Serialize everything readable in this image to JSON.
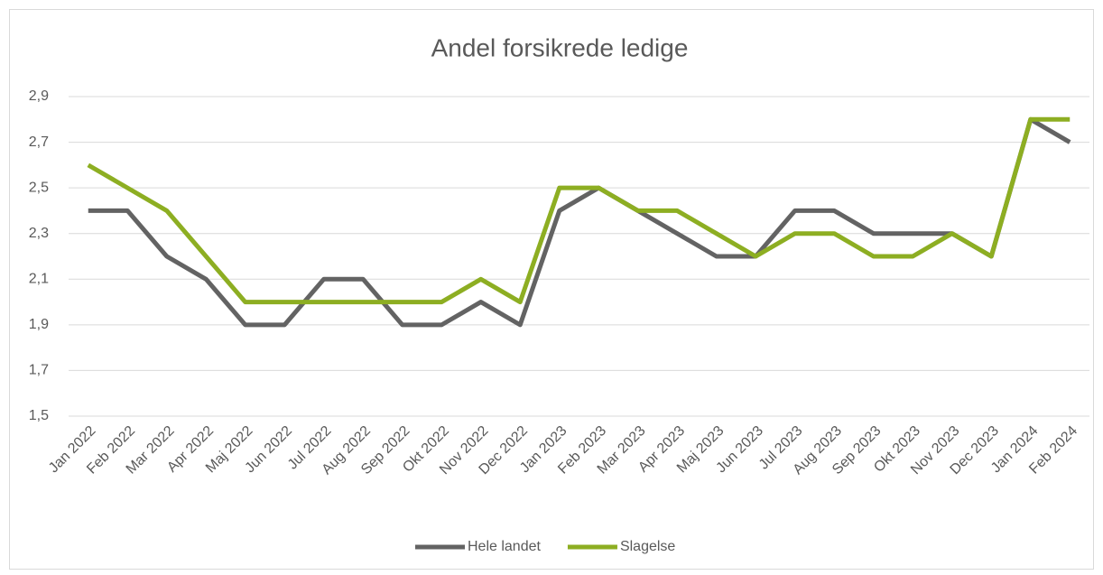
{
  "chart_data": {
    "type": "line",
    "title": "Andel forsikrede ledige",
    "categories": [
      "Jan 2022",
      "Feb 2022",
      "Mar 2022",
      "Apr 2022",
      "Maj 2022",
      "Jun 2022",
      "Jul 2022",
      "Aug 2022",
      "Sep 2022",
      "Okt 2022",
      "Nov 2022",
      "Dec 2022",
      "Jan 2023",
      "Feb 2023",
      "Mar 2023",
      "Apr 2023",
      "Maj 2023",
      "Jun 2023",
      "Jul 2023",
      "Aug 2023",
      "Sep 2023",
      "Okt 2023",
      "Nov 2023",
      "Dec 2023",
      "Jan 2024",
      "Feb 2024"
    ],
    "series": [
      {
        "name": "Hele landet",
        "color": "#636363",
        "values": [
          2.4,
          2.4,
          2.2,
          2.1,
          1.9,
          1.9,
          2.1,
          2.1,
          1.9,
          1.9,
          2.0,
          1.9,
          2.4,
          2.5,
          2.4,
          2.3,
          2.2,
          2.2,
          2.4,
          2.4,
          2.3,
          2.3,
          2.3,
          2.2,
          2.8,
          2.7
        ]
      },
      {
        "name": "Slagelse",
        "color": "#8DAE22",
        "values": [
          2.6,
          2.5,
          2.4,
          2.2,
          2.0,
          2.0,
          2.0,
          2.0,
          2.0,
          2.0,
          2.1,
          2.0,
          2.5,
          2.5,
          2.4,
          2.4,
          2.3,
          2.2,
          2.3,
          2.3,
          2.2,
          2.2,
          2.3,
          2.2,
          2.8,
          2.8
        ]
      }
    ],
    "ylim": [
      1.5,
      2.9
    ],
    "yticks": [
      {
        "value": 1.5,
        "label": "1,5"
      },
      {
        "value": 1.7,
        "label": "1,7"
      },
      {
        "value": 1.9,
        "label": "1,9"
      },
      {
        "value": 2.1,
        "label": "2,1"
      },
      {
        "value": 2.3,
        "label": "2,3"
      },
      {
        "value": 2.5,
        "label": "2,5"
      },
      {
        "value": 2.7,
        "label": "2,7"
      },
      {
        "value": 2.9,
        "label": "2,9"
      }
    ],
    "grid": true,
    "legend": "bottom"
  }
}
